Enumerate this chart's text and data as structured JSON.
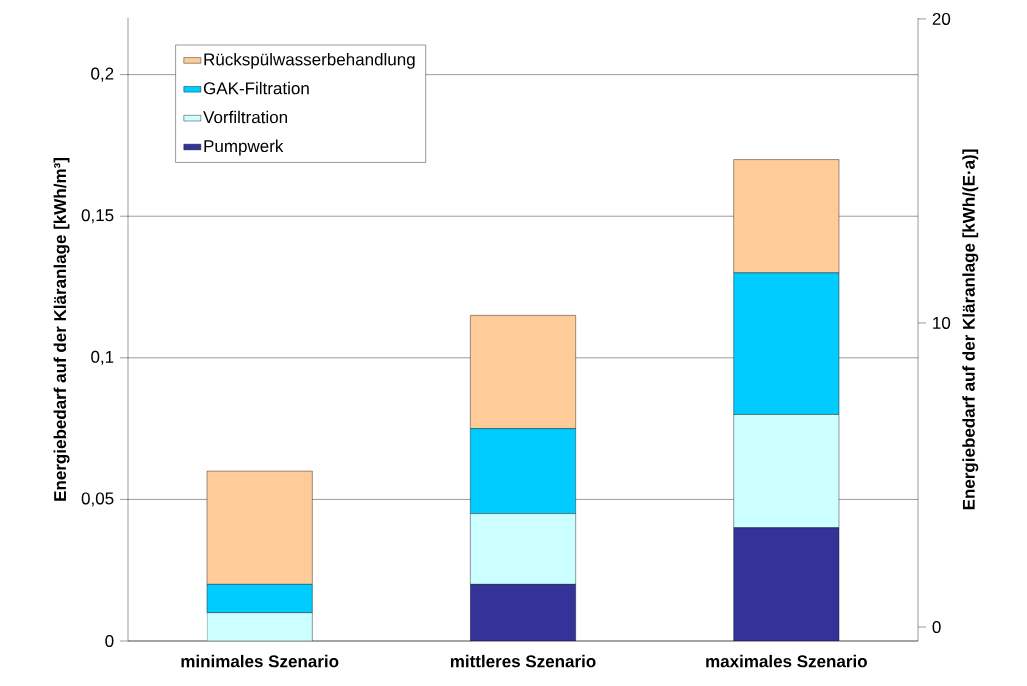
{
  "chart_data": {
    "type": "bar",
    "stacked": true,
    "categories": [
      "minimales Szenario",
      "mittleres Szenario",
      "maximales Szenario"
    ],
    "series": [
      {
        "name": "Pumpwerk",
        "color": "#333399",
        "values": [
          0,
          0.02,
          0.04
        ]
      },
      {
        "name": "Vorfiltration",
        "color": "#ccffff",
        "values": [
          0.01,
          0.025,
          0.04
        ]
      },
      {
        "name": "GAK-Filtration",
        "color": "#00ccff",
        "values": [
          0.01,
          0.03,
          0.05
        ]
      },
      {
        "name": "Rückspülwasserbehandlung",
        "color": "#ffcc99",
        "values": [
          0.04,
          0.04,
          0.04
        ]
      }
    ],
    "ylabel": "Energiebedarf auf der Kläranlage [kWh/m³]",
    "y2label": "Energiebedarf auf der Kläranlage [kWh/(E·a)]",
    "ylim": [
      0,
      0.22
    ],
    "yticks": [
      0,
      {
        "value": 0.05,
        "label": "0,05"
      },
      {
        "value": 0.1,
        "label": "0,1"
      },
      {
        "value": 0.15,
        "label": "0,15"
      },
      {
        "value": 0.2,
        "label": "0,2"
      }
    ],
    "y2lim": [
      -0.46,
      20.03
    ],
    "y2ticks": [
      0,
      10,
      20
    ],
    "grid": "y",
    "legend": "top left"
  }
}
